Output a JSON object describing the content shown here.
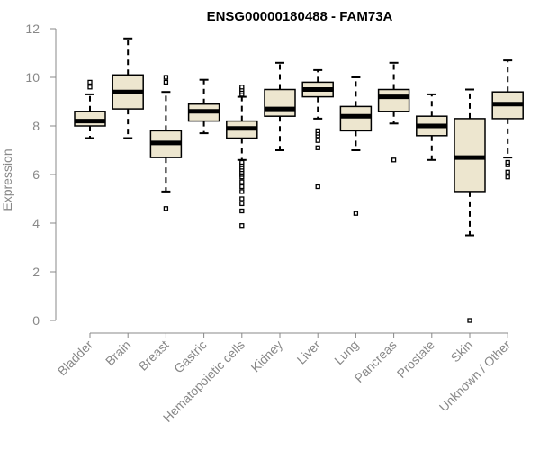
{
  "chart_data": {
    "type": "boxplot",
    "title": "ENSG00000180488 - FAM73A",
    "xlabel": "",
    "ylabel": "Expression",
    "ylim": [
      0,
      12
    ],
    "yticks": [
      0,
      2,
      4,
      6,
      8,
      10,
      12
    ],
    "categories": [
      "Bladder",
      "Brain",
      "Breast",
      "Gastric",
      "Hematopoietic cells",
      "Kidney",
      "Liver",
      "Lung",
      "Pancreas",
      "Prostate",
      "Skin",
      "Unknown / Other"
    ],
    "boxes": [
      {
        "name": "Bladder",
        "whisker_low": 7.5,
        "q1": 8.0,
        "median": 8.2,
        "q3": 8.6,
        "whisker_high": 9.3,
        "outliers": [
          9.6,
          9.8
        ]
      },
      {
        "name": "Brain",
        "whisker_low": 7.5,
        "q1": 8.7,
        "median": 9.4,
        "q3": 10.1,
        "whisker_high": 11.6,
        "outliers": []
      },
      {
        "name": "Breast",
        "whisker_low": 5.3,
        "q1": 6.7,
        "median": 7.3,
        "q3": 7.8,
        "whisker_high": 9.4,
        "outliers": [
          4.6,
          9.8,
          10.0
        ]
      },
      {
        "name": "Gastric",
        "whisker_low": 7.7,
        "q1": 8.2,
        "median": 8.6,
        "q3": 8.9,
        "whisker_high": 9.9,
        "outliers": []
      },
      {
        "name": "Hematopoietic cells",
        "whisker_low": 6.6,
        "q1": 7.5,
        "median": 7.9,
        "q3": 8.2,
        "whisker_high": 9.2,
        "outliers": [
          3.9,
          4.5,
          4.8,
          5.0,
          5.3,
          5.5,
          5.7,
          5.9,
          6.0,
          6.1,
          6.2,
          6.3,
          6.4,
          6.5,
          9.3,
          9.4,
          9.5,
          9.6
        ]
      },
      {
        "name": "Kidney",
        "whisker_low": 7.0,
        "q1": 8.4,
        "median": 8.7,
        "q3": 9.5,
        "whisker_high": 10.6,
        "outliers": []
      },
      {
        "name": "Liver",
        "whisker_low": 8.3,
        "q1": 9.2,
        "median": 9.5,
        "q3": 9.8,
        "whisker_high": 10.3,
        "outliers": [
          5.5,
          7.1,
          7.4,
          7.6,
          7.7,
          7.8
        ]
      },
      {
        "name": "Lung",
        "whisker_low": 7.0,
        "q1": 7.8,
        "median": 8.4,
        "q3": 8.8,
        "whisker_high": 10.0,
        "outliers": [
          4.4
        ]
      },
      {
        "name": "Pancreas",
        "whisker_low": 8.1,
        "q1": 8.6,
        "median": 9.2,
        "q3": 9.5,
        "whisker_high": 10.6,
        "outliers": [
          6.6
        ]
      },
      {
        "name": "Prostate",
        "whisker_low": 6.6,
        "q1": 7.6,
        "median": 8.0,
        "q3": 8.4,
        "whisker_high": 9.3,
        "outliers": []
      },
      {
        "name": "Skin",
        "whisker_low": 3.5,
        "q1": 5.3,
        "median": 6.7,
        "q3": 8.3,
        "whisker_high": 9.5,
        "outliers": [
          0.0
        ]
      },
      {
        "name": "Unknown / Other",
        "whisker_low": 6.7,
        "q1": 8.3,
        "median": 8.9,
        "q3": 9.4,
        "whisker_high": 10.7,
        "outliers": [
          5.9,
          6.1,
          6.4,
          6.5
        ]
      }
    ],
    "colors": {
      "box_fill": "#ede6cf",
      "box_stroke": "#000000",
      "median": "#000000",
      "axis": "#888888",
      "text": "#888888",
      "title": "#000000"
    }
  }
}
